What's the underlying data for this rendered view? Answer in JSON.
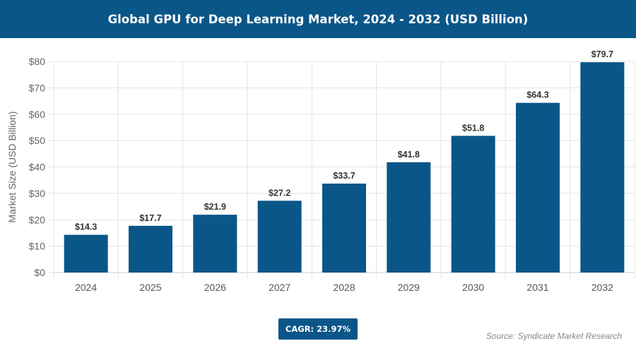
{
  "chart_data": {
    "type": "bar",
    "title": "Global GPU for Deep Learning Market, 2024 - 2032 (USD Billion)",
    "xlabel": "",
    "ylabel": "Market Size (USD Billion)",
    "categories": [
      "2024",
      "2025",
      "2026",
      "2027",
      "2028",
      "2029",
      "2030",
      "2031",
      "2032"
    ],
    "values": [
      14.3,
      17.7,
      21.9,
      27.2,
      33.7,
      41.8,
      51.8,
      64.3,
      79.7
    ],
    "data_labels": [
      "$14.3",
      "$17.7",
      "$21.9",
      "$27.2",
      "$33.7",
      "$41.8",
      "$51.8",
      "$64.3",
      "$79.7"
    ],
    "ylim": [
      0,
      80
    ],
    "yticks": [
      "$0",
      "$10",
      "$20",
      "$30",
      "$40",
      "$50",
      "$60",
      "$70",
      "$80"
    ],
    "grid": true,
    "bar_color": "#0b5688"
  },
  "cagr": "CAGR: 23.97%",
  "source": "Source: Syndicate Market Research"
}
